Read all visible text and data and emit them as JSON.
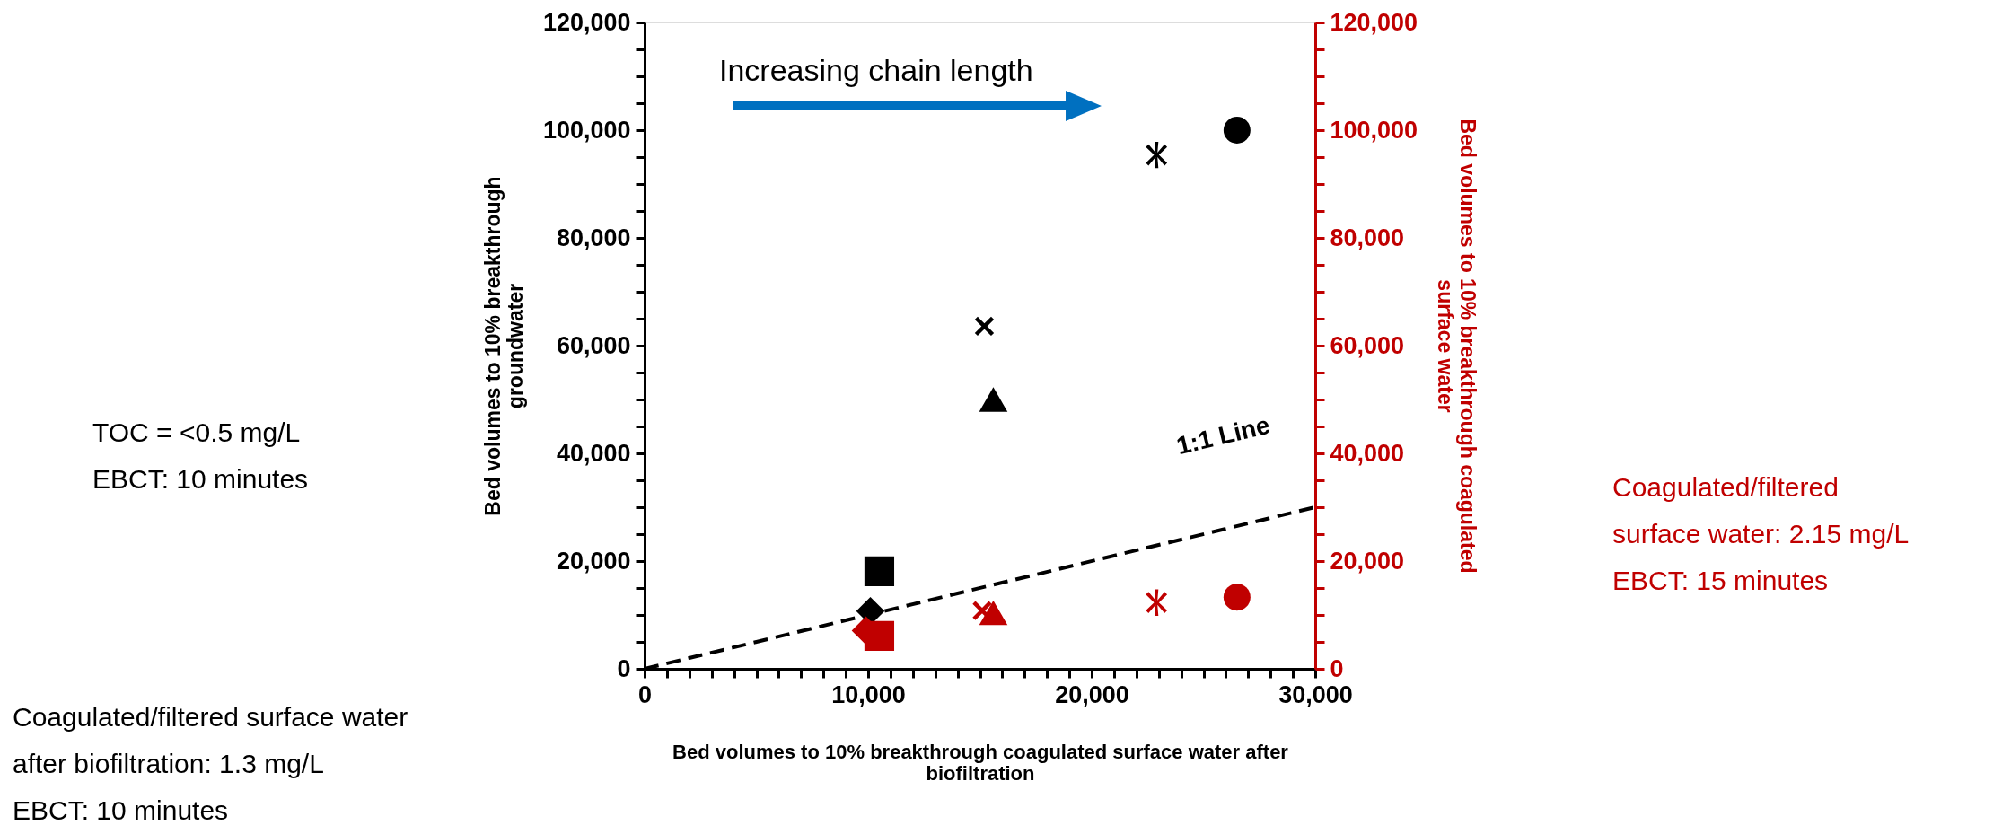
{
  "chart_data": {
    "type": "scatter",
    "xlabel": "Bed volumes to 10% breakthrough coagulated surface water after biofiltration",
    "ylabel": "Bed volumes to 10% breakthrough groundwater",
    "y2label": "Bed volumes to 10% breakthrough coagulated surface water",
    "xlim": [
      0,
      30000
    ],
    "ylim": [
      0,
      120000
    ],
    "y2lim": [
      0,
      120000
    ],
    "xticks": [
      {
        "value": 0,
        "label": "0"
      },
      {
        "value": 1000,
        "label": null
      },
      {
        "value": 2000,
        "label": null
      },
      {
        "value": 3000,
        "label": null
      },
      {
        "value": 4000,
        "label": null
      },
      {
        "value": 5000,
        "label": null
      },
      {
        "value": 6000,
        "label": null
      },
      {
        "value": 7000,
        "label": null
      },
      {
        "value": 8000,
        "label": null
      },
      {
        "value": 9000,
        "label": null
      },
      {
        "value": 10000,
        "label": "10,000"
      },
      {
        "value": 11000,
        "label": null
      },
      {
        "value": 12000,
        "label": null
      },
      {
        "value": 13000,
        "label": null
      },
      {
        "value": 14000,
        "label": null
      },
      {
        "value": 15000,
        "label": null
      },
      {
        "value": 16000,
        "label": null
      },
      {
        "value": 17000,
        "label": null
      },
      {
        "value": 18000,
        "label": null
      },
      {
        "value": 19000,
        "label": null
      },
      {
        "value": 20000,
        "label": "20,000"
      },
      {
        "value": 21000,
        "label": null
      },
      {
        "value": 22000,
        "label": null
      },
      {
        "value": 23000,
        "label": null
      },
      {
        "value": 24000,
        "label": null
      },
      {
        "value": 25000,
        "label": null
      },
      {
        "value": 26000,
        "label": null
      },
      {
        "value": 27000,
        "label": null
      },
      {
        "value": 28000,
        "label": null
      },
      {
        "value": 29000,
        "label": null
      },
      {
        "value": 30000,
        "label": "30,000"
      }
    ],
    "yticks": [
      {
        "value": 0,
        "label": "0"
      },
      {
        "value": 5000,
        "label": null
      },
      {
        "value": 10000,
        "label": null
      },
      {
        "value": 15000,
        "label": null
      },
      {
        "value": 20000,
        "label": "20,000"
      },
      {
        "value": 25000,
        "label": null
      },
      {
        "value": 30000,
        "label": null
      },
      {
        "value": 35000,
        "label": null
      },
      {
        "value": 40000,
        "label": "40,000"
      },
      {
        "value": 45000,
        "label": null
      },
      {
        "value": 50000,
        "label": null
      },
      {
        "value": 55000,
        "label": null
      },
      {
        "value": 60000,
        "label": "60,000"
      },
      {
        "value": 65000,
        "label": null
      },
      {
        "value": 70000,
        "label": null
      },
      {
        "value": 75000,
        "label": null
      },
      {
        "value": 80000,
        "label": "80,000"
      },
      {
        "value": 85000,
        "label": null
      },
      {
        "value": 90000,
        "label": null
      },
      {
        "value": 95000,
        "label": null
      },
      {
        "value": 100000,
        "label": "100,000"
      },
      {
        "value": 105000,
        "label": null
      },
      {
        "value": 110000,
        "label": null
      },
      {
        "value": 115000,
        "label": null
      },
      {
        "value": 120000,
        "label": "120,000"
      }
    ],
    "y2ticks": [
      {
        "value": 0,
        "label": "0"
      },
      {
        "value": 5000,
        "label": null
      },
      {
        "value": 10000,
        "label": null
      },
      {
        "value": 15000,
        "label": null
      },
      {
        "value": 20000,
        "label": "20,000"
      },
      {
        "value": 25000,
        "label": null
      },
      {
        "value": 30000,
        "label": null
      },
      {
        "value": 35000,
        "label": null
      },
      {
        "value": 40000,
        "label": "40,000"
      },
      {
        "value": 45000,
        "label": null
      },
      {
        "value": 50000,
        "label": null
      },
      {
        "value": 55000,
        "label": null
      },
      {
        "value": 60000,
        "label": "60,000"
      },
      {
        "value": 65000,
        "label": null
      },
      {
        "value": 70000,
        "label": null
      },
      {
        "value": 75000,
        "label": null
      },
      {
        "value": 80000,
        "label": "80,000"
      },
      {
        "value": 85000,
        "label": null
      },
      {
        "value": 90000,
        "label": null
      },
      {
        "value": 95000,
        "label": null
      },
      {
        "value": 100000,
        "label": "100,000"
      },
      {
        "value": 105000,
        "label": null
      },
      {
        "value": 110000,
        "label": null
      },
      {
        "value": 115000,
        "label": null
      },
      {
        "value": 120000,
        "label": "120,000"
      }
    ],
    "grid": false,
    "series": [
      {
        "marker": "diamond",
        "color": "#000000",
        "x": [
          10100
        ],
        "values": [
          10700
        ]
      },
      {
        "marker": "square",
        "color": "#000000",
        "x": [
          10500
        ],
        "values": [
          18100
        ]
      },
      {
        "marker": "triangle",
        "color": "#000000",
        "x": [
          15600
        ],
        "values": [
          50000
        ]
      },
      {
        "marker": "cross",
        "color": "#000000",
        "x": [
          15200
        ],
        "values": [
          63600
        ]
      },
      {
        "marker": "star",
        "color": "#000000",
        "x": [
          22900
        ],
        "values": [
          95400
        ]
      },
      {
        "marker": "circle",
        "color": "#000000",
        "x": [
          26500
        ],
        "values": [
          100000
        ]
      },
      {
        "axis": "y2",
        "marker": "diamond",
        "color": "#c00000",
        "x": [
          9900
        ],
        "values": [
          7100
        ]
      },
      {
        "axis": "y2",
        "marker": "square",
        "color": "#c00000",
        "x": [
          10500
        ],
        "values": [
          6100
        ]
      },
      {
        "axis": "y2",
        "marker": "cross",
        "color": "#c00000",
        "x": [
          15100
        ],
        "values": [
          10800
        ]
      },
      {
        "axis": "y2",
        "marker": "triangle",
        "color": "#c00000",
        "x": [
          15600
        ],
        "values": [
          10400
        ]
      },
      {
        "axis": "y2",
        "marker": "star",
        "color": "#c00000",
        "x": [
          22900
        ],
        "values": [
          12300
        ]
      },
      {
        "axis": "y2",
        "marker": "circle",
        "color": "#c00000",
        "x": [
          26500
        ],
        "values": [
          13300
        ]
      },
      {
        "type": "line",
        "marker": "none",
        "line_style": "dashed",
        "color": "#000000",
        "x": [
          0,
          30000
        ],
        "values": [
          0,
          30000
        ]
      }
    ],
    "annotations": [
      "Increasing chain length",
      "TOC = <0.5 mg/L\nEBCT: 10 minutes",
      "Coagulated/filtered surface water\nafter biofiltration: 1.3 mg/L\nEBCT: 10 minutes",
      "Coagulated/filtered\nsurface water: 2.15 mg/L\nEBCT: 15 minutes",
      "1:1 Line"
    ]
  }
}
